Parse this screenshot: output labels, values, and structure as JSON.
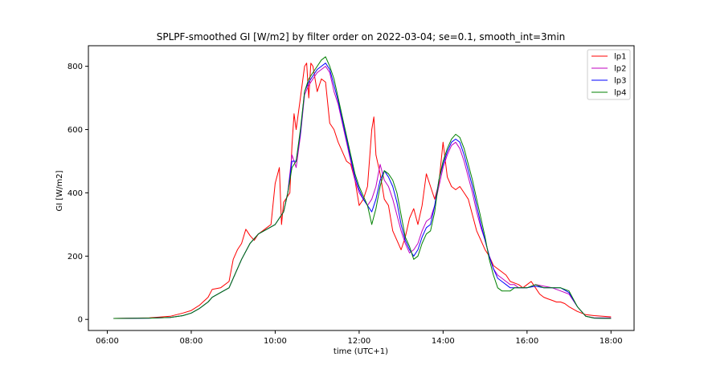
{
  "chart_data": {
    "type": "line",
    "title": "SPLPF-smoothed GI [W/m2] by filter order on 2022-03-04; se=0.1, smooth_int=3min",
    "xlabel": "time (UTC+1)",
    "ylabel": "GI [W/m2]",
    "xlim": [
      5.55,
      18.55
    ],
    "ylim": [
      -35,
      865
    ],
    "x_ticks": [
      6,
      8,
      10,
      12,
      14,
      16,
      18
    ],
    "x_tick_labels": [
      "06:00",
      "08:00",
      "10:00",
      "12:00",
      "14:00",
      "16:00",
      "18:00"
    ],
    "y_ticks": [
      0,
      200,
      400,
      600,
      800
    ],
    "y_tick_labels": [
      "0",
      "200",
      "400",
      "600",
      "800"
    ],
    "grid": false,
    "legend_position": "top-right",
    "series": [
      {
        "name": "lp1",
        "color": "#ff0000",
        "x": [
          6.15,
          7.0,
          7.5,
          7.8,
          8.0,
          8.2,
          8.4,
          8.5,
          8.7,
          8.9,
          9.0,
          9.1,
          9.2,
          9.3,
          9.4,
          9.5,
          9.6,
          9.7,
          9.8,
          9.9,
          10.0,
          10.1,
          10.15,
          10.2,
          10.3,
          10.35,
          10.4,
          10.45,
          10.5,
          10.6,
          10.7,
          10.75,
          10.8,
          10.85,
          10.9,
          11.0,
          11.1,
          11.2,
          11.3,
          11.4,
          11.5,
          11.6,
          11.7,
          11.8,
          11.9,
          12.0,
          12.1,
          12.2,
          12.3,
          12.35,
          12.4,
          12.5,
          12.6,
          12.7,
          12.8,
          12.9,
          13.0,
          13.1,
          13.2,
          13.3,
          13.4,
          13.5,
          13.6,
          13.7,
          13.8,
          13.9,
          14.0,
          14.1,
          14.2,
          14.3,
          14.4,
          14.5,
          14.6,
          14.7,
          14.8,
          14.9,
          15.0,
          15.1,
          15.2,
          15.3,
          15.4,
          15.5,
          15.6,
          15.7,
          15.8,
          15.9,
          16.0,
          16.1,
          16.2,
          16.3,
          16.4,
          16.5,
          16.6,
          16.7,
          16.8,
          16.9,
          17.0,
          17.2,
          17.4,
          17.6,
          18.0
        ],
        "y": [
          3,
          5,
          10,
          20,
          28,
          45,
          70,
          95,
          100,
          120,
          190,
          220,
          240,
          285,
          265,
          250,
          270,
          280,
          290,
          300,
          430,
          480,
          300,
          370,
          390,
          400,
          550,
          650,
          600,
          700,
          800,
          810,
          700,
          810,
          800,
          720,
          760,
          750,
          620,
          600,
          560,
          530,
          500,
          490,
          440,
          360,
          380,
          420,
          600,
          640,
          520,
          460,
          380,
          360,
          280,
          250,
          220,
          260,
          320,
          350,
          300,
          360,
          460,
          420,
          380,
          430,
          560,
          450,
          420,
          410,
          420,
          400,
          380,
          330,
          280,
          250,
          220,
          200,
          170,
          160,
          150,
          140,
          120,
          115,
          110,
          100,
          110,
          120,
          100,
          80,
          70,
          65,
          60,
          55,
          55,
          50,
          40,
          25,
          15,
          12,
          8
        ]
      },
      {
        "name": "lp2",
        "color": "#bf00bf",
        "x": [
          6.15,
          7.0,
          7.5,
          7.8,
          8.0,
          8.2,
          8.4,
          8.5,
          8.7,
          8.9,
          9.0,
          9.2,
          9.4,
          9.6,
          9.8,
          10.0,
          10.1,
          10.2,
          10.3,
          10.4,
          10.5,
          10.6,
          10.7,
          10.8,
          10.9,
          11.0,
          11.1,
          11.2,
          11.3,
          11.4,
          11.5,
          11.6,
          11.7,
          11.8,
          11.9,
          12.0,
          12.1,
          12.2,
          12.3,
          12.4,
          12.5,
          12.6,
          12.7,
          12.8,
          12.9,
          13.0,
          13.1,
          13.2,
          13.3,
          13.4,
          13.5,
          13.6,
          13.7,
          13.8,
          13.9,
          14.0,
          14.1,
          14.2,
          14.3,
          14.4,
          14.5,
          14.6,
          14.7,
          14.8,
          14.9,
          15.0,
          15.1,
          15.2,
          15.3,
          15.4,
          15.5,
          15.6,
          15.7,
          15.8,
          16.0,
          16.2,
          16.4,
          16.6,
          16.8,
          17.0,
          17.2,
          17.4,
          17.6,
          18.0
        ],
        "y": [
          3,
          4,
          6,
          12,
          20,
          35,
          55,
          70,
          85,
          100,
          130,
          190,
          240,
          270,
          285,
          300,
          320,
          340,
          400,
          520,
          480,
          580,
          710,
          740,
          760,
          780,
          790,
          800,
          780,
          720,
          680,
          620,
          560,
          500,
          440,
          400,
          380,
          360,
          380,
          420,
          490,
          440,
          420,
          380,
          330,
          280,
          240,
          210,
          220,
          240,
          280,
          310,
          320,
          360,
          420,
          480,
          520,
          550,
          560,
          540,
          500,
          450,
          400,
          340,
          290,
          250,
          200,
          160,
          140,
          130,
          120,
          110,
          110,
          100,
          100,
          110,
          105,
          100,
          90,
          80,
          40,
          10,
          5,
          5
        ]
      },
      {
        "name": "lp3",
        "color": "#0000ff",
        "x": [
          6.15,
          7.0,
          7.5,
          7.8,
          8.0,
          8.2,
          8.4,
          8.5,
          8.7,
          8.9,
          9.0,
          9.2,
          9.4,
          9.6,
          9.8,
          10.0,
          10.1,
          10.2,
          10.3,
          10.4,
          10.5,
          10.6,
          10.7,
          10.8,
          10.9,
          11.0,
          11.1,
          11.2,
          11.3,
          11.4,
          11.5,
          11.6,
          11.7,
          11.8,
          11.9,
          12.0,
          12.1,
          12.2,
          12.3,
          12.4,
          12.5,
          12.6,
          12.7,
          12.8,
          12.9,
          13.0,
          13.1,
          13.2,
          13.3,
          13.4,
          13.5,
          13.6,
          13.7,
          13.8,
          13.9,
          14.0,
          14.1,
          14.2,
          14.3,
          14.4,
          14.5,
          14.6,
          14.7,
          14.8,
          14.9,
          15.0,
          15.1,
          15.2,
          15.3,
          15.4,
          15.5,
          15.6,
          15.7,
          15.8,
          16.0,
          16.2,
          16.4,
          16.6,
          16.8,
          17.0,
          17.2,
          17.4,
          17.6,
          18.0
        ],
        "y": [
          3,
          4,
          6,
          12,
          20,
          35,
          55,
          70,
          85,
          100,
          130,
          190,
          240,
          270,
          285,
          300,
          320,
          340,
          400,
          500,
          500,
          590,
          720,
          750,
          770,
          790,
          800,
          810,
          790,
          740,
          690,
          630,
          570,
          510,
          450,
          410,
          380,
          360,
          340,
          380,
          440,
          470,
          450,
          420,
          370,
          300,
          250,
          220,
          200,
          220,
          260,
          290,
          300,
          360,
          440,
          490,
          530,
          560,
          570,
          560,
          520,
          470,
          420,
          360,
          300,
          250,
          200,
          160,
          130,
          120,
          110,
          100,
          100,
          100,
          100,
          105,
          100,
          100,
          100,
          85,
          40,
          10,
          4,
          3
        ]
      },
      {
        "name": "lp4",
        "color": "#008000",
        "x": [
          6.15,
          7.0,
          7.5,
          7.8,
          8.0,
          8.2,
          8.4,
          8.5,
          8.7,
          8.9,
          9.0,
          9.2,
          9.4,
          9.6,
          9.8,
          10.0,
          10.1,
          10.2,
          10.3,
          10.4,
          10.5,
          10.6,
          10.7,
          10.8,
          10.9,
          11.0,
          11.1,
          11.2,
          11.3,
          11.4,
          11.5,
          11.6,
          11.7,
          11.8,
          11.9,
          12.0,
          12.1,
          12.2,
          12.3,
          12.4,
          12.5,
          12.6,
          12.7,
          12.8,
          12.9,
          13.0,
          13.1,
          13.2,
          13.3,
          13.4,
          13.5,
          13.6,
          13.7,
          13.8,
          13.9,
          14.0,
          14.1,
          14.2,
          14.3,
          14.4,
          14.5,
          14.6,
          14.7,
          14.8,
          14.9,
          15.0,
          15.1,
          15.2,
          15.3,
          15.4,
          15.5,
          15.6,
          15.7,
          15.8,
          16.0,
          16.2,
          16.4,
          16.6,
          16.8,
          17.0,
          17.2,
          17.4,
          17.6,
          18.0
        ],
        "y": [
          3,
          4,
          6,
          12,
          20,
          35,
          55,
          70,
          85,
          100,
          130,
          190,
          240,
          270,
          285,
          300,
          320,
          340,
          400,
          480,
          500,
          600,
          720,
          760,
          780,
          800,
          820,
          830,
          800,
          760,
          700,
          640,
          580,
          520,
          460,
          420,
          390,
          360,
          300,
          350,
          420,
          470,
          460,
          440,
          400,
          330,
          260,
          230,
          190,
          200,
          240,
          270,
          280,
          340,
          440,
          500,
          540,
          570,
          585,
          575,
          540,
          490,
          440,
          380,
          320,
          260,
          190,
          140,
          100,
          90,
          90,
          90,
          100,
          100,
          100,
          110,
          100,
          100,
          100,
          90,
          40,
          10,
          4,
          3
        ]
      }
    ]
  }
}
